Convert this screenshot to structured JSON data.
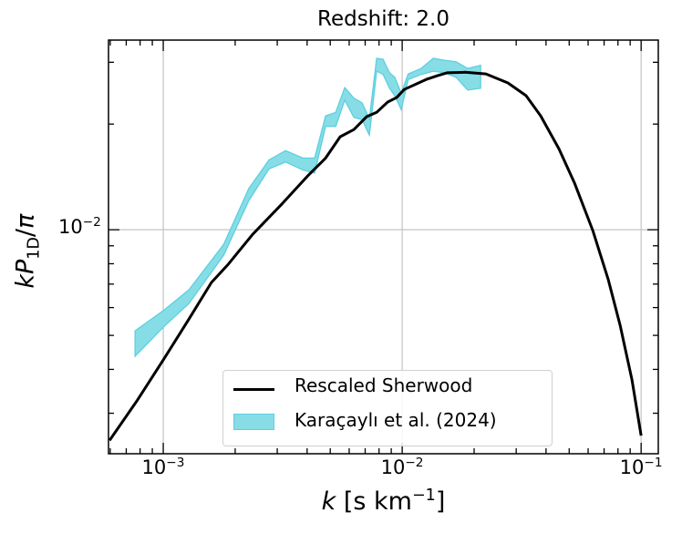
{
  "chart_data": {
    "type": "line",
    "title": "Redshift: 2.0",
    "xlabel": {
      "italic": "k",
      "rest": " [s km",
      "sup": "−1",
      "end": "]"
    },
    "ylabel": {
      "italic1": "kP",
      "sub": "1D",
      "rest": "/",
      "italic2": "π"
    },
    "xscale": "log",
    "yscale": "log",
    "xlim": [
      0.00059,
      0.118
    ],
    "ylim": [
      0.0023,
      0.0347
    ],
    "grid": true,
    "legend_placement": "lower-center",
    "x_ticks": [
      {
        "value": 0.001,
        "base": "10",
        "exp": "−3"
      },
      {
        "value": 0.01,
        "base": "10",
        "exp": "−2"
      },
      {
        "value": 0.1,
        "base": "10",
        "exp": "−1"
      }
    ],
    "y_ticks": [
      {
        "value": 0.01,
        "base": "10",
        "exp": "−2"
      }
    ],
    "colors": {
      "line": "#000000",
      "band_fill": "#87dde6",
      "band_edge": "#5ccfdf",
      "grid": "#c4c4c4"
    },
    "series": [
      {
        "name": "Rescaled Sherwood",
        "kind": "line",
        "x": [
          0.000596,
          0.000775,
          0.00101,
          0.00128,
          0.00159,
          0.00187,
          0.00237,
          0.00316,
          0.00401,
          0.00478,
          0.0055,
          0.00628,
          0.0071,
          0.00782,
          0.00869,
          0.00948,
          0.0102,
          0.0126,
          0.0141,
          0.0154,
          0.0183,
          0.0224,
          0.0277,
          0.033,
          0.038,
          0.0453,
          0.0526,
          0.0628,
          0.0729,
          0.0817,
          0.0916,
          0.1
        ],
        "y": [
          0.00251,
          0.00325,
          0.0043,
          0.00556,
          0.00707,
          0.00797,
          0.00971,
          0.0119,
          0.0142,
          0.016,
          0.0184,
          0.0193,
          0.021,
          0.0216,
          0.0231,
          0.0238,
          0.0251,
          0.0268,
          0.0275,
          0.028,
          0.0281,
          0.0278,
          0.0262,
          0.0241,
          0.0211,
          0.017,
          0.0136,
          0.00994,
          0.0072,
          0.00534,
          0.00373,
          0.00259
        ]
      },
      {
        "name": "Karaçaylı et al. (2024)",
        "kind": "band",
        "x": [
          0.000762,
          0.00101,
          0.00128,
          0.00179,
          0.00228,
          0.00277,
          0.00325,
          0.00384,
          0.0043,
          0.00478,
          0.00527,
          0.00575,
          0.00628,
          0.00679,
          0.00729,
          0.00782,
          0.00832,
          0.00885,
          0.00931,
          0.00991,
          0.0106,
          0.012,
          0.0135,
          0.015,
          0.0168,
          0.0188,
          0.0213
        ],
        "upper": [
          0.00515,
          0.00591,
          0.00674,
          0.00908,
          0.0131,
          0.0158,
          0.0168,
          0.016,
          0.016,
          0.0211,
          0.0216,
          0.0254,
          0.0237,
          0.023,
          0.0207,
          0.0308,
          0.0306,
          0.028,
          0.0272,
          0.0245,
          0.0278,
          0.0288,
          0.0308,
          0.0304,
          0.0301,
          0.0288,
          0.0294
        ],
        "lower": [
          0.00436,
          0.00531,
          0.00616,
          0.00846,
          0.0121,
          0.0149,
          0.0156,
          0.0148,
          0.0145,
          0.0197,
          0.0197,
          0.0234,
          0.0209,
          0.0206,
          0.0186,
          0.0283,
          0.0277,
          0.0253,
          0.0241,
          0.022,
          0.0268,
          0.0277,
          0.0283,
          0.028,
          0.0272,
          0.025,
          0.0253
        ]
      }
    ]
  }
}
